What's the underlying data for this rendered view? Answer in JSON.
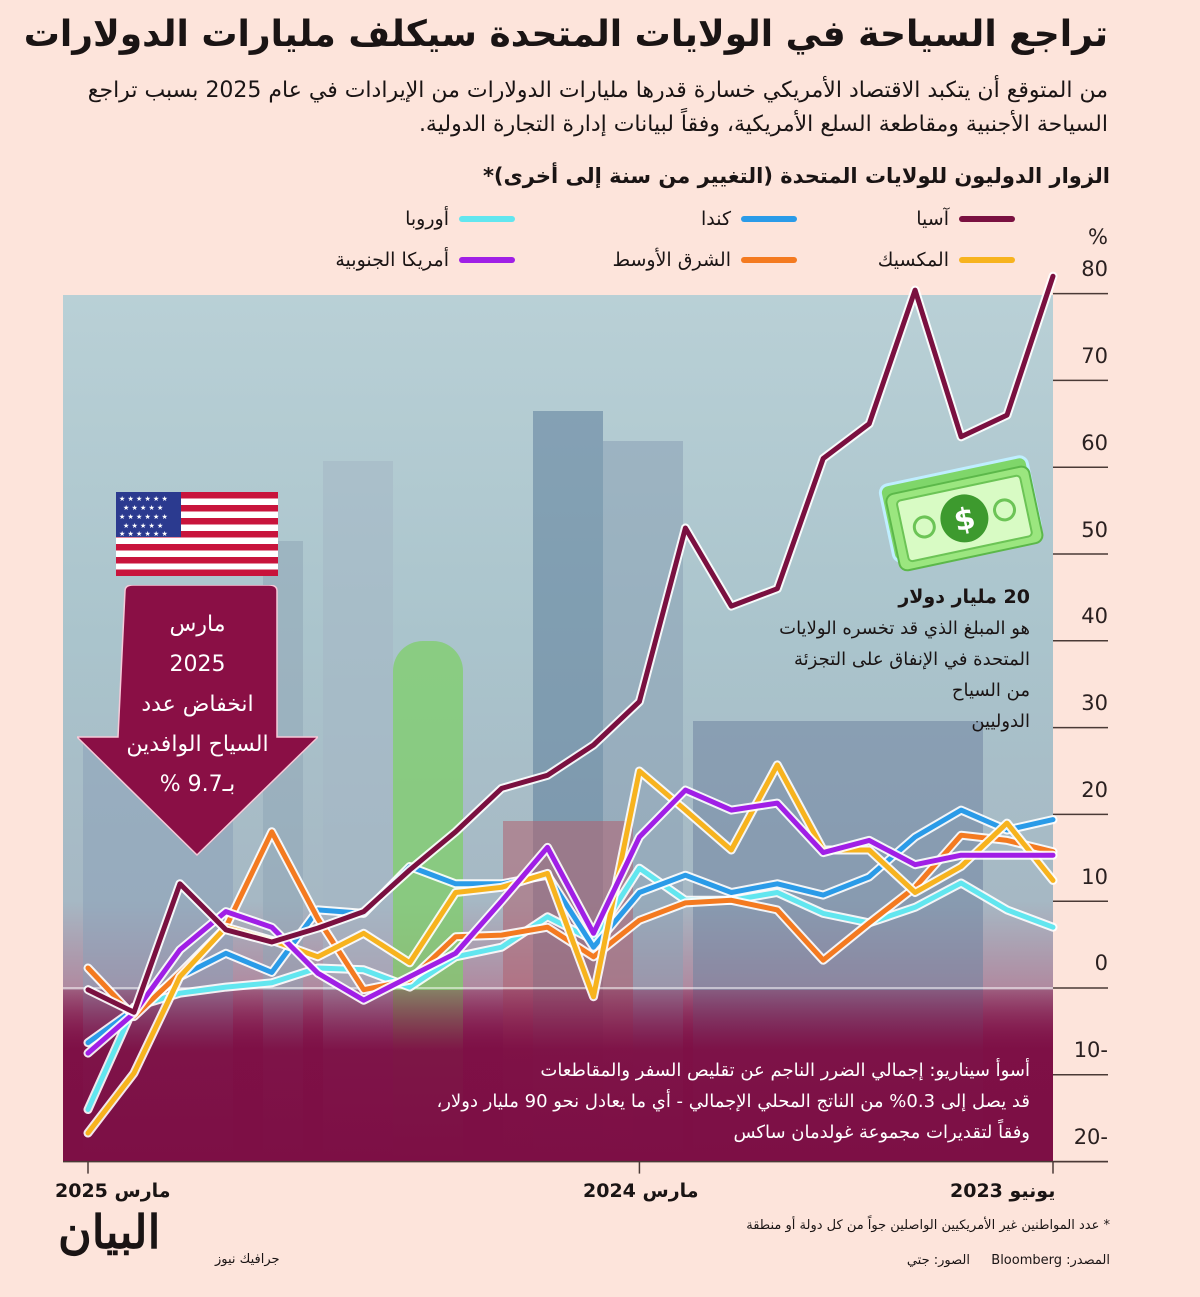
{
  "header": {
    "title": "تراجع السياحة في الولايات المتحدة سيكلف مليارات الدولارات",
    "subtitle": "من المتوقع أن يتكبد الاقتصاد الأمريكي خسارة قدرها مليارات الدولارات من الإيرادات في عام 2025 بسبب تراجع السياحة الأجنبية ومقاطعة السلع الأمريكية، وفقاً لبيانات إدارة التجارة الدولية."
  },
  "callouts": {
    "arrow_lines": [
      "مارس",
      "2025",
      "انخفاض عدد",
      "السياح الوافدين",
      "بـ9.7 %"
    ],
    "money_heading": "20 مليار دولار",
    "money_lines": [
      "هو المبلغ الذي قد تخسره الولايات",
      "المتحدة في الإنفاق على التجزئة",
      "من السياح",
      "الدوليين"
    ],
    "scenario_lines": [
      "أسوأ سيناريو: إجمالي الضرر الناجم عن تقليص السفر والمقاطعات",
      "قد يصل إلى 0.3% من الناتج المحلي الإجمالي - أي ما يعادل نحو 90 مليار دولار،",
      "وفقاً لتقديرات مجموعة غولدمان ساكس"
    ]
  },
  "footer": {
    "footnote": "* عدد المواطنين غير الأمريكيين الواصلين جواً من كل دولة أو منطقة",
    "source": "المصدر: Bloomberg",
    "photos": "الصور: جتي",
    "brand": "البيان",
    "brand_sub": "جرافيك نيوز"
  },
  "chart_data": {
    "type": "line",
    "title": "الزوار الدوليون للولايات المتحدة (التغيير من سنة إلى أخرى)*",
    "ylabel": "%",
    "ylim": [
      -20,
      80
    ],
    "yticks": [
      80,
      70,
      60,
      50,
      40,
      30,
      20,
      10,
      0,
      -10,
      -20
    ],
    "ytick_labels": [
      "80",
      "70",
      "60",
      "50",
      "40",
      "30",
      "20",
      "10",
      "0",
      "10-",
      "20-"
    ],
    "x_direction": "right-to-left",
    "x_months": [
      "2025-03",
      "2025-02",
      "2025-01",
      "2024-12",
      "2024-11",
      "2024-10",
      "2024-09",
      "2024-08",
      "2024-07",
      "2024-06",
      "2024-05",
      "2024-04",
      "2024-03",
      "2024-02",
      "2024-01",
      "2023-12",
      "2023-11",
      "2023-10",
      "2023-09",
      "2023-08",
      "2023-07",
      "2023-06"
    ],
    "xtick_labels": [
      {
        "index": 0,
        "label": "مارس 2025"
      },
      {
        "index": 12,
        "label": "مارس 2024"
      },
      {
        "index": 21,
        "label": "يونيو 2023"
      }
    ],
    "legend_placement": "top",
    "series": [
      {
        "name": "آسيا",
        "color": "#7a1040",
        "values": [
          -0.2,
          -2.8,
          12,
          6.7,
          5.3,
          6.9,
          8.8,
          13.6,
          18,
          23,
          24.5,
          28,
          33,
          53,
          44,
          46,
          61,
          65,
          80.4,
          63.5,
          66,
          82
        ]
      },
      {
        "name": "كندا",
        "color": "#2a9be8",
        "values": [
          -6.3,
          -2.5,
          1.3,
          4,
          1.8,
          9,
          8.6,
          14,
          12,
          12,
          13,
          4.7,
          11,
          13,
          11,
          12,
          10.7,
          12.8,
          17.4,
          20.5,
          18.2,
          19.4
        ]
      },
      {
        "name": "أوروبا",
        "color": "#62e6ef",
        "values": [
          -14,
          -2.2,
          -0.6,
          0.1,
          0.6,
          2.3,
          2.1,
          0.1,
          3.6,
          4.7,
          8.2,
          5.5,
          13.8,
          10.1,
          10.1,
          11,
          8.6,
          7.5,
          9.3,
          12.1,
          9,
          7
        ]
      },
      {
        "name": "المكسيك",
        "color": "#f7b31e",
        "values": [
          -16.7,
          -9.8,
          1.3,
          7,
          5.5,
          3.6,
          6.3,
          2.9,
          11,
          11.6,
          13.2,
          -1,
          25,
          20.5,
          15.9,
          25.7,
          15.9,
          15.9,
          11,
          14,
          19,
          12.4
        ]
      },
      {
        "name": "الشرق الأوسط",
        "color": "#f47a20",
        "values": [
          2.3,
          -3.3,
          1.7,
          7,
          18,
          8,
          -0.2,
          0.9,
          5.9,
          6.1,
          7,
          3.6,
          7.8,
          9.8,
          10.1,
          9,
          3.2,
          7.5,
          11.6,
          17.6,
          17,
          15.7
        ]
      },
      {
        "name": "أمريكا الجنوبية",
        "color": "#a01fe6",
        "values": [
          -7.5,
          -2.9,
          4.4,
          8.8,
          7,
          1.7,
          -1.4,
          1.3,
          4,
          10,
          16.2,
          6.3,
          17.4,
          22.8,
          20.5,
          21.3,
          15.6,
          17,
          14.2,
          15.3,
          15.3,
          15.3
        ]
      }
    ]
  }
}
